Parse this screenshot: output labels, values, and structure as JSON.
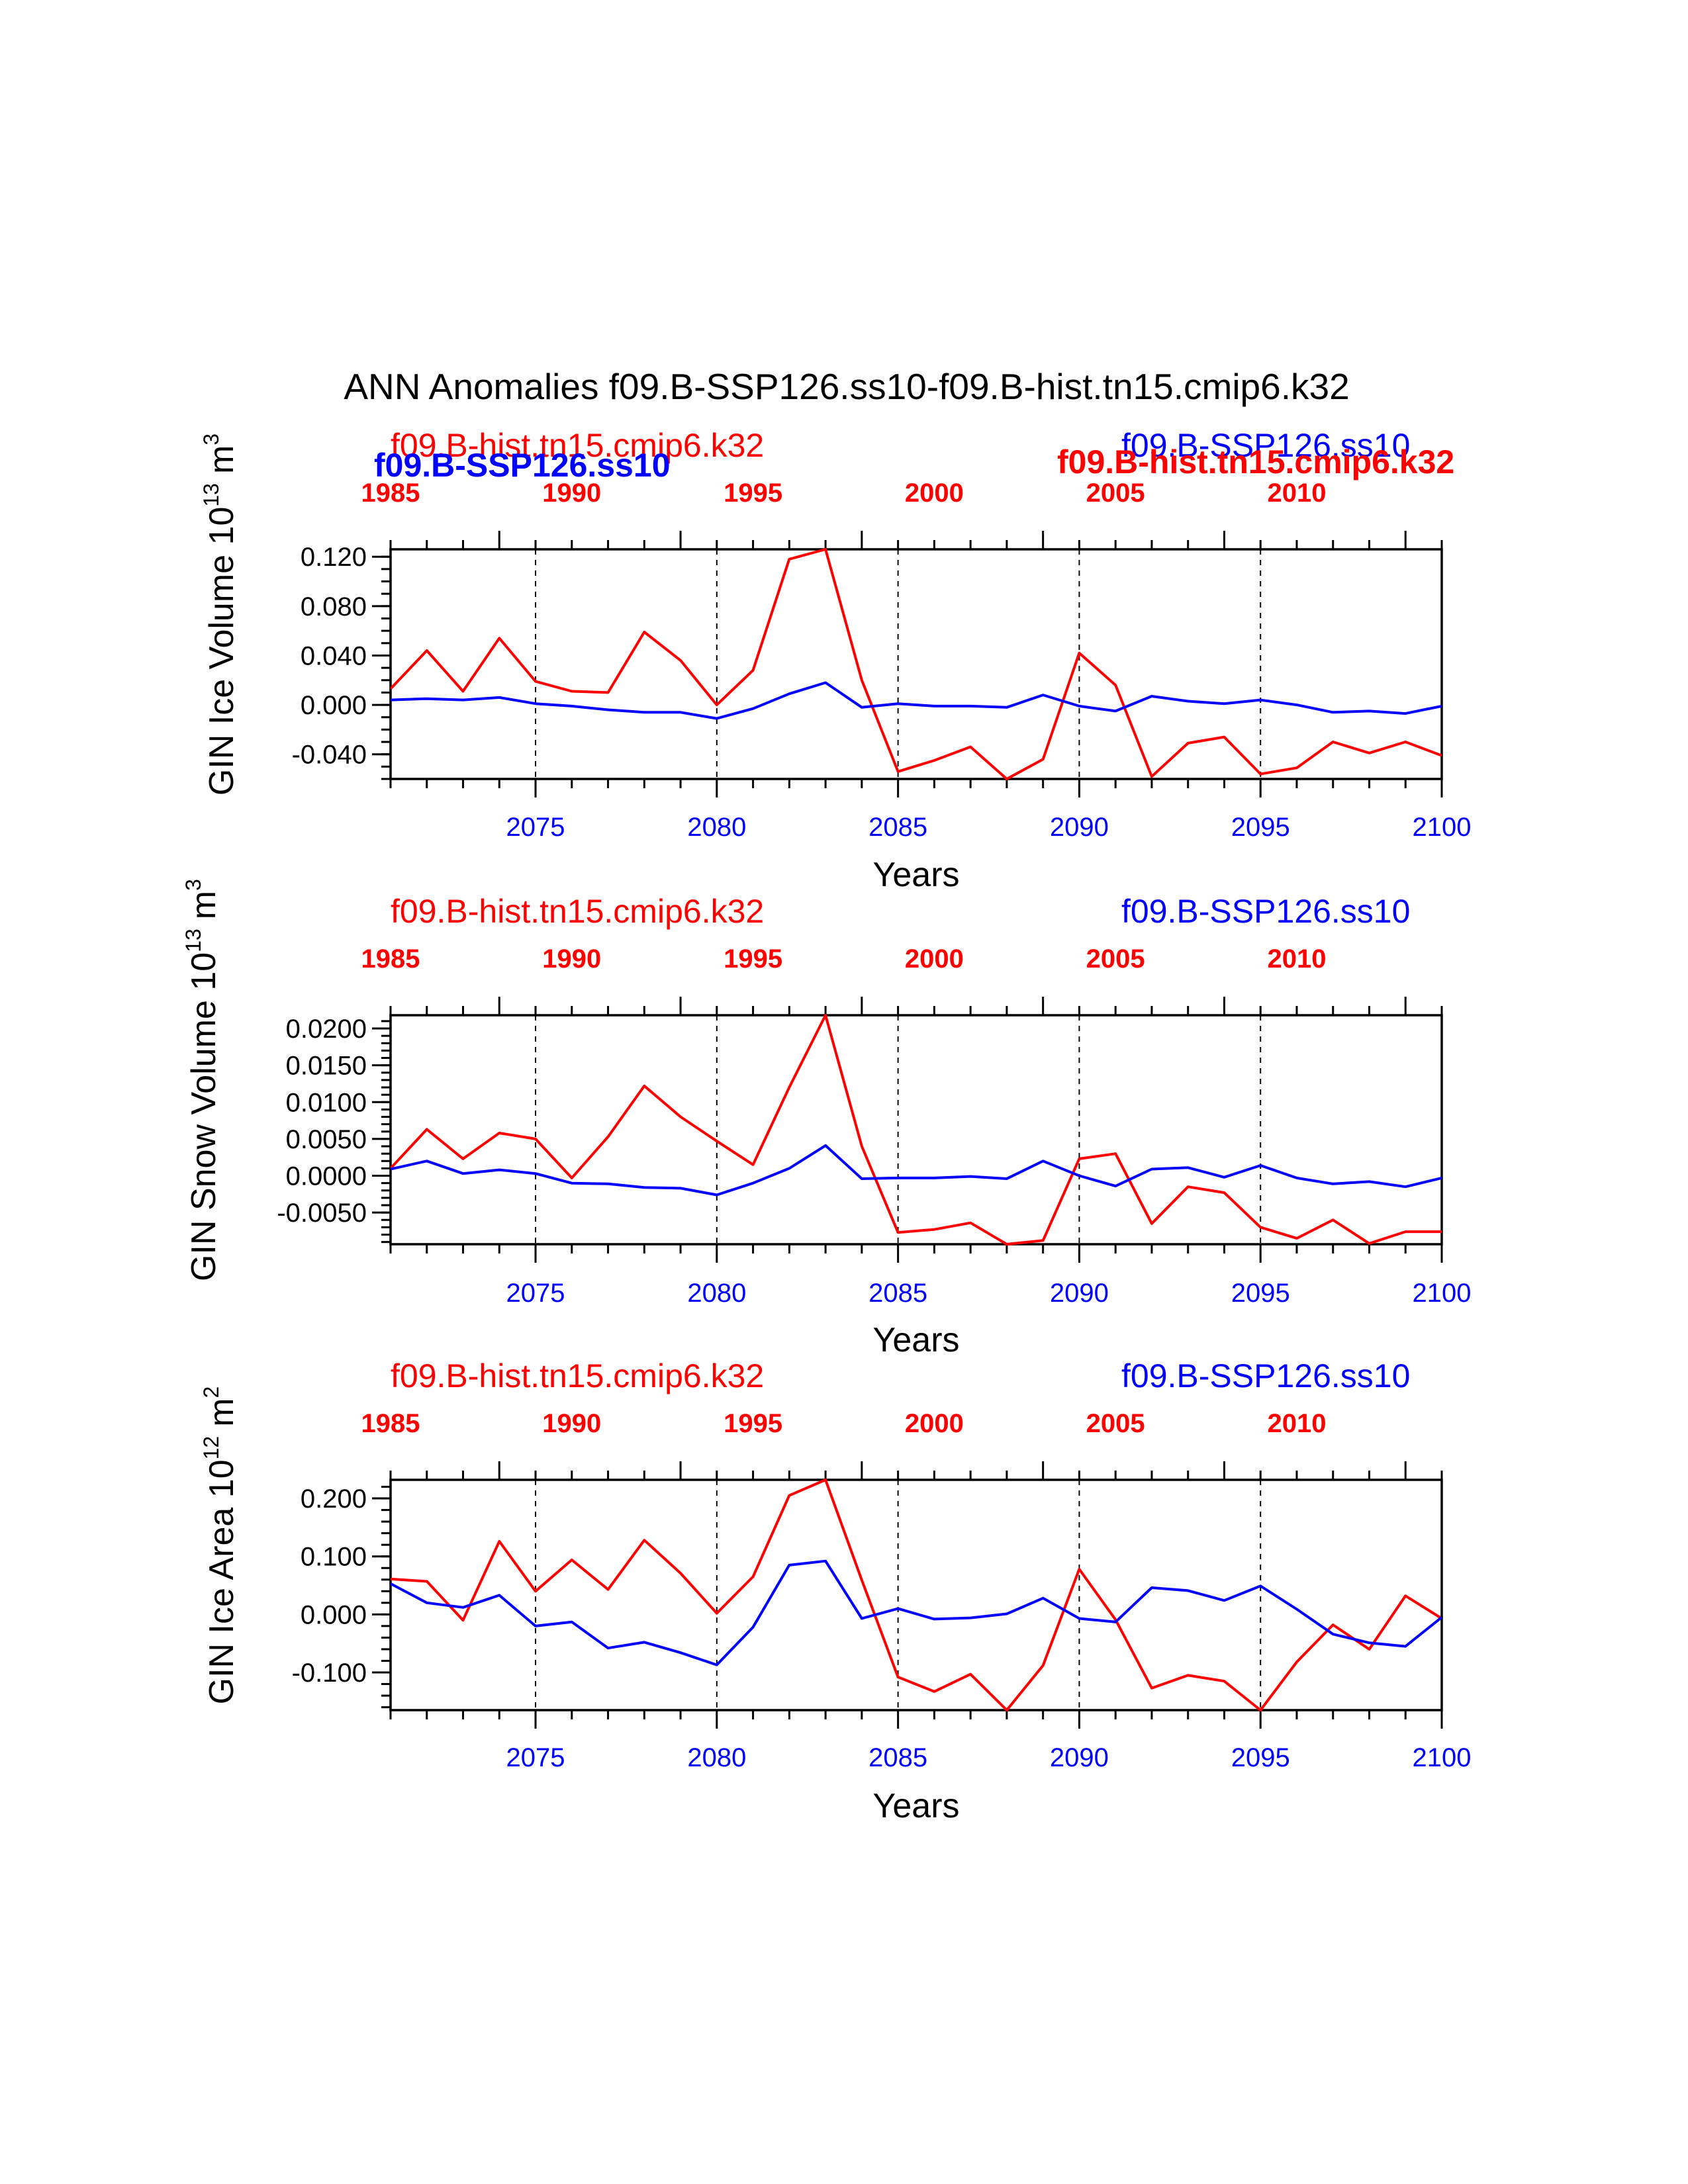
{
  "title": "ANN Anomalies f09.B-SSP126.ss10-f09.B-hist.tn15.cmip6.k32",
  "colors": {
    "red": "#ff0000",
    "blue": "#0000ff",
    "axis": "#000000"
  },
  "chart_data": [
    {
      "type": "line",
      "name": "ice-volume",
      "ylabel": "GIN Ice Volume 10",
      "ylabel_exp": "13",
      "ylabel_unit": "m",
      "ylabel_unit_exp": "3",
      "xlabel": "Years",
      "red_label": "f09.B-hist.tn15.cmip6.k32",
      "blue_label": "f09.B-SSP126.ss10",
      "overlap_blue_bold": "f09.B-SSP126.ss10",
      "overlap_red_bold": "f09.B-hist.tn15.cmip6.k32",
      "ylim": [
        -0.06,
        0.126
      ],
      "yticks": [
        -0.04,
        0.0,
        0.04,
        0.08,
        0.12
      ],
      "ytick_labels": [
        "-0.040",
        "0.000",
        "0.040",
        "0.080",
        "0.120"
      ],
      "yminor_step": 0.01,
      "bottom_xticks": [
        2075,
        2080,
        2085,
        2090,
        2095,
        2100
      ],
      "top_xticks": [
        "1985",
        "1990",
        "1995",
        "2000",
        "2005",
        "2010"
      ],
      "x": [
        2071,
        2072,
        2073,
        2074,
        2075,
        2076,
        2077,
        2078,
        2079,
        2080,
        2081,
        2082,
        2083,
        2084,
        2085,
        2086,
        2087,
        2088,
        2089,
        2090,
        2091,
        2092,
        2093,
        2094,
        2095,
        2096,
        2097,
        2098,
        2099,
        2100
      ],
      "series": [
        {
          "name": "f09.B-hist.tn15.cmip6.k32",
          "color": "#ff0000",
          "values": [
            0.013,
            0.044,
            0.011,
            0.054,
            0.019,
            0.011,
            0.01,
            0.059,
            0.036,
            0.0,
            0.028,
            0.118,
            0.126,
            0.02,
            -0.054,
            -0.045,
            -0.034,
            -0.06,
            -0.044,
            0.042,
            0.016,
            -0.058,
            -0.031,
            -0.026,
            -0.056,
            -0.051,
            -0.03,
            -0.039,
            -0.03,
            -0.041
          ]
        },
        {
          "name": "f09.B-SSP126.ss10",
          "color": "#0000ff",
          "values": [
            0.004,
            0.005,
            0.004,
            0.006,
            0.001,
            -0.001,
            -0.004,
            -0.006,
            -0.006,
            -0.011,
            -0.003,
            0.009,
            0.018,
            -0.002,
            0.001,
            -0.001,
            -0.001,
            -0.002,
            0.008,
            -0.001,
            -0.005,
            0.007,
            0.003,
            0.001,
            0.004,
            0.0,
            -0.006,
            -0.005,
            -0.007,
            -0.001
          ]
        }
      ]
    },
    {
      "type": "line",
      "name": "snow-volume",
      "ylabel": "GIN Snow Volume 10",
      "ylabel_exp": "13",
      "ylabel_unit": "m",
      "ylabel_unit_exp": "3",
      "xlabel": "Years",
      "red_label": "f09.B-hist.tn15.cmip6.k32",
      "blue_label": "f09.B-SSP126.ss10",
      "ylim": [
        -0.0093,
        0.0218
      ],
      "yticks": [
        -0.005,
        0.0,
        0.005,
        0.01,
        0.015,
        0.02
      ],
      "ytick_labels": [
        "-0.0050",
        "0.0000",
        "0.0050",
        "0.0100",
        "0.0150",
        "0.0200"
      ],
      "yminor_step": 0.001,
      "bottom_xticks": [
        2075,
        2080,
        2085,
        2090,
        2095,
        2100
      ],
      "top_xticks": [
        "1985",
        "1990",
        "1995",
        "2000",
        "2005",
        "2010"
      ],
      "x": [
        2071,
        2072,
        2073,
        2074,
        2075,
        2076,
        2077,
        2078,
        2079,
        2080,
        2081,
        2082,
        2083,
        2084,
        2085,
        2086,
        2087,
        2088,
        2089,
        2090,
        2091,
        2092,
        2093,
        2094,
        2095,
        2096,
        2097,
        2098,
        2099,
        2100
      ],
      "series": [
        {
          "name": "f09.B-hist.tn15.cmip6.k32",
          "color": "#ff0000",
          "values": [
            0.001,
            0.0063,
            0.0023,
            0.0058,
            0.005,
            -0.0003,
            0.0053,
            0.0122,
            0.008,
            0.0047,
            0.0015,
            0.012,
            0.0218,
            0.004,
            -0.0077,
            -0.0073,
            -0.0064,
            -0.0093,
            -0.0088,
            0.0023,
            0.003,
            -0.0065,
            -0.0015,
            -0.0023,
            -0.007,
            -0.0085,
            -0.006,
            -0.0092,
            -0.0076,
            -0.0076
          ]
        },
        {
          "name": "f09.B-SSP126.ss10",
          "color": "#0000ff",
          "values": [
            0.0009,
            0.002,
            0.0003,
            0.0008,
            0.0003,
            -0.001,
            -0.0011,
            -0.0016,
            -0.0017,
            -0.0026,
            -0.001,
            0.001,
            0.0041,
            -0.0004,
            -0.0003,
            -0.0003,
            -0.0001,
            -0.0004,
            0.002,
            0.0,
            -0.0014,
            0.0009,
            0.0011,
            -0.0002,
            0.0014,
            -0.0003,
            -0.0011,
            -0.0008,
            -0.0015,
            -0.0003
          ]
        }
      ]
    },
    {
      "type": "line",
      "name": "ice-area",
      "ylabel": "GIN Ice Area 10",
      "ylabel_exp": "12",
      "ylabel_unit": "m",
      "ylabel_unit_exp": "2",
      "xlabel": "Years",
      "red_label": "f09.B-hist.tn15.cmip6.k32",
      "blue_label": "f09.B-SSP126.ss10",
      "ylim": [
        -0.165,
        0.232
      ],
      "yticks": [
        -0.1,
        0.0,
        0.1,
        0.2
      ],
      "ytick_labels": [
        "-0.100",
        "0.000",
        "0.100",
        "0.200"
      ],
      "yminor_step": 0.02,
      "bottom_xticks": [
        2075,
        2080,
        2085,
        2090,
        2095,
        2100
      ],
      "top_xticks": [
        "1985",
        "1990",
        "1995",
        "2000",
        "2005",
        "2010"
      ],
      "x": [
        2071,
        2072,
        2073,
        2074,
        2075,
        2076,
        2077,
        2078,
        2079,
        2080,
        2081,
        2082,
        2083,
        2084,
        2085,
        2086,
        2087,
        2088,
        2089,
        2090,
        2091,
        2092,
        2093,
        2094,
        2095,
        2096,
        2097,
        2098,
        2099,
        2100
      ],
      "series": [
        {
          "name": "f09.B-hist.tn15.cmip6.k32",
          "color": "#ff0000",
          "values": [
            0.061,
            0.057,
            -0.01,
            0.126,
            0.04,
            0.094,
            0.043,
            0.128,
            0.071,
            0.002,
            0.065,
            0.205,
            0.232,
            0.059,
            -0.108,
            -0.133,
            -0.103,
            -0.165,
            -0.088,
            0.078,
            -0.009,
            -0.127,
            -0.105,
            -0.115,
            -0.165,
            -0.082,
            -0.018,
            -0.06,
            0.032,
            -0.007
          ]
        },
        {
          "name": "f09.B-SSP126.ss10",
          "color": "#0000ff",
          "values": [
            0.053,
            0.02,
            0.012,
            0.033,
            -0.02,
            -0.013,
            -0.058,
            -0.048,
            -0.066,
            -0.087,
            -0.022,
            0.085,
            0.092,
            -0.007,
            0.01,
            -0.008,
            -0.006,
            0.001,
            0.028,
            -0.007,
            -0.013,
            0.046,
            0.041,
            0.024,
            0.049,
            0.009,
            -0.034,
            -0.049,
            -0.055,
            -0.005
          ]
        }
      ]
    }
  ]
}
